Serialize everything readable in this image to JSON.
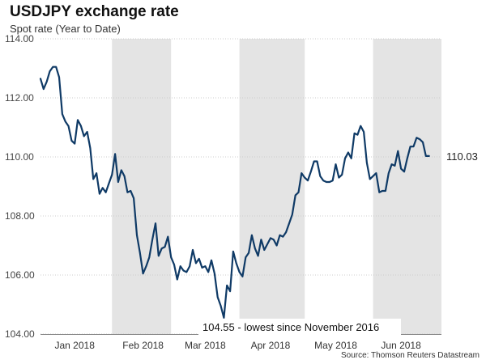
{
  "header": {
    "title": "USDJPY exchange rate",
    "subtitle": "Spot rate (Year to Date)"
  },
  "footer": {
    "source": "Source: Thomson Reuters Datastream"
  },
  "colors": {
    "line": "#0f3a66",
    "band": "#e4e4e4",
    "grid": "#cccccc",
    "axis": "#888888"
  },
  "chart_data": {
    "type": "line",
    "title": "USDJPY exchange rate",
    "subtitle": "Spot rate (Year to Date)",
    "xlabel": "",
    "ylabel": "",
    "ylim": [
      104,
      114
    ],
    "yticks": [
      104,
      106,
      108,
      110,
      112,
      114
    ],
    "ytick_labels": [
      "104.00",
      "106.00",
      "108.00",
      "110.00",
      "112.00",
      "114.00"
    ],
    "grid": true,
    "x_index_range": [
      0,
      129
    ],
    "month_labels": [
      "Jan 2018",
      "Feb 2018",
      "Mar 2018",
      "Apr 2018",
      "May 2018",
      "Jun 2018"
    ],
    "month_label_index": [
      11,
      33,
      53,
      74,
      95,
      116
    ],
    "shaded_index_ranges": [
      [
        23,
        42
      ],
      [
        64,
        85
      ],
      [
        107,
        129
      ]
    ],
    "last_value_label": "110.03",
    "annotation": {
      "text": "104.55 - lowest since November 2016",
      "index": 59,
      "value": 104.55
    },
    "series": [
      {
        "name": "USDJPY",
        "values": [
          112.65,
          112.3,
          112.55,
          112.9,
          113.05,
          113.05,
          112.7,
          111.45,
          111.2,
          111.05,
          110.55,
          110.45,
          111.25,
          111.05,
          110.7,
          110.85,
          110.3,
          109.25,
          109.45,
          108.75,
          108.95,
          108.8,
          109.1,
          109.4,
          110.1,
          109.15,
          109.55,
          109.35,
          108.8,
          108.85,
          108.6,
          107.35,
          106.75,
          106.05,
          106.3,
          106.6,
          107.2,
          107.75,
          106.65,
          106.9,
          106.95,
          107.3,
          106.6,
          106.35,
          105.85,
          106.3,
          106.15,
          106.1,
          106.3,
          106.85,
          106.4,
          106.55,
          106.25,
          106.3,
          106.1,
          106.5,
          106.05,
          105.25,
          104.95,
          104.55,
          105.65,
          105.45,
          106.8,
          106.4,
          106.1,
          105.95,
          106.6,
          106.75,
          107.35,
          106.9,
          106.65,
          107.2,
          106.85,
          107.05,
          107.25,
          107.2,
          107.0,
          107.35,
          107.3,
          107.45,
          107.75,
          108.05,
          108.7,
          108.8,
          109.45,
          109.3,
          109.2,
          109.5,
          109.85,
          109.85,
          109.35,
          109.2,
          109.15,
          109.15,
          109.2,
          109.75,
          109.3,
          109.4,
          109.95,
          110.15,
          109.95,
          110.8,
          110.75,
          111.05,
          110.85,
          109.8,
          109.25,
          109.35,
          109.45,
          108.8,
          108.85,
          108.85,
          109.45,
          109.75,
          109.7,
          110.2,
          109.6,
          109.5,
          109.95,
          110.35,
          110.35,
          110.65,
          110.6,
          110.5,
          110.03,
          110.03
        ]
      }
    ]
  }
}
